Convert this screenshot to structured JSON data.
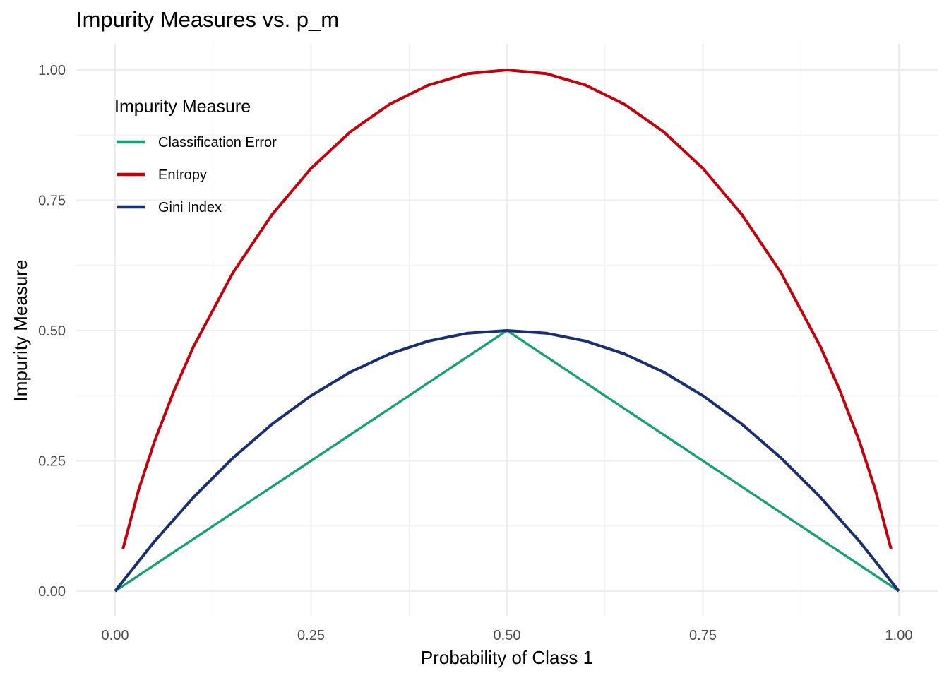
{
  "chart_data": {
    "type": "line",
    "title": "Impurity Measures vs. p_m",
    "xlabel": "Probability of Class 1",
    "ylabel": "Impurity Measure",
    "xlim": [
      0,
      1
    ],
    "ylim": [
      0,
      1
    ],
    "x_ticks": [
      "0.00",
      "0.25",
      "0.50",
      "0.75",
      "1.00"
    ],
    "y_ticks": [
      "0.00",
      "0.25",
      "0.50",
      "0.75",
      "1.00"
    ],
    "grid": true,
    "legend": {
      "title": "Impurity Measure",
      "position": "top-left"
    },
    "series": [
      {
        "name": "Classification Error",
        "color": "#1b9e77",
        "x": [
          0,
          0.5,
          1
        ],
        "y": [
          0,
          0.5,
          0
        ]
      },
      {
        "name": "Entropy",
        "color": "#c0000c",
        "x": [
          0.01,
          0.03,
          0.05,
          0.075,
          0.1,
          0.15,
          0.2,
          0.25,
          0.3,
          0.35,
          0.4,
          0.45,
          0.5,
          0.55,
          0.6,
          0.65,
          0.7,
          0.75,
          0.8,
          0.85,
          0.9,
          0.925,
          0.95,
          0.97,
          0.99
        ],
        "y": [
          0.081,
          0.194,
          0.286,
          0.384,
          0.469,
          0.61,
          0.722,
          0.811,
          0.881,
          0.934,
          0.971,
          0.993,
          1.0,
          0.993,
          0.971,
          0.934,
          0.881,
          0.811,
          0.722,
          0.61,
          0.469,
          0.384,
          0.286,
          0.194,
          0.081
        ]
      },
      {
        "name": "Gini Index",
        "color": "#1a2f6e",
        "x": [
          0,
          0.05,
          0.1,
          0.15,
          0.2,
          0.25,
          0.3,
          0.35,
          0.4,
          0.45,
          0.5,
          0.55,
          0.6,
          0.65,
          0.7,
          0.75,
          0.8,
          0.85,
          0.9,
          0.95,
          1.0
        ],
        "y": [
          0,
          0.095,
          0.18,
          0.255,
          0.32,
          0.375,
          0.42,
          0.455,
          0.48,
          0.495,
          0.5,
          0.495,
          0.48,
          0.455,
          0.42,
          0.375,
          0.32,
          0.255,
          0.18,
          0.095,
          0
        ]
      }
    ]
  }
}
